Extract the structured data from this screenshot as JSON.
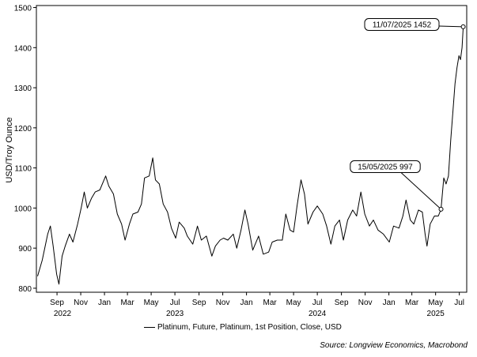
{
  "chart_data": {
    "type": "line",
    "title": "",
    "ylabel": "USD/Troy Ounce",
    "xlabel": "",
    "ylim": [
      790,
      1505
    ],
    "yticks": [
      "800",
      "900",
      "1000",
      "1100",
      "1200",
      "1300",
      "1400",
      "1500"
    ],
    "xticks": [
      "Sep",
      "Nov",
      "Jan",
      "Mar",
      "May",
      "Jul",
      "Sep",
      "Nov",
      "Jan",
      "Mar",
      "May",
      "Jul",
      "Sep",
      "Nov",
      "Jan",
      "Mar",
      "May",
      "Jul"
    ],
    "xyears": [
      "2022",
      "2023",
      "2024",
      "2025"
    ],
    "grid": false,
    "legend_position": "bottom",
    "series": [
      {
        "name": "Platinum, Future, Platinum, 1st Position, Close, USD",
        "color": "#000000",
        "points": [
          [
            "2022-07-13",
            830
          ],
          [
            "2022-07-25",
            870
          ],
          [
            "2022-08-08",
            935
          ],
          [
            "2022-08-15",
            955
          ],
          [
            "2022-08-22",
            905
          ],
          [
            "2022-08-31",
            835
          ],
          [
            "2022-09-06",
            810
          ],
          [
            "2022-09-14",
            880
          ],
          [
            "2022-09-22",
            905
          ],
          [
            "2022-10-03",
            935
          ],
          [
            "2022-10-12",
            915
          ],
          [
            "2022-10-24",
            960
          ],
          [
            "2022-11-02",
            1000
          ],
          [
            "2022-11-10",
            1040
          ],
          [
            "2022-11-18",
            1000
          ],
          [
            "2022-11-29",
            1025
          ],
          [
            "2022-12-08",
            1040
          ],
          [
            "2022-12-20",
            1045
          ],
          [
            "2023-01-04",
            1080
          ],
          [
            "2023-01-12",
            1055
          ],
          [
            "2023-01-24",
            1035
          ],
          [
            "2023-02-03",
            985
          ],
          [
            "2023-02-14",
            960
          ],
          [
            "2023-02-23",
            920
          ],
          [
            "2023-03-06",
            960
          ],
          [
            "2023-03-15",
            985
          ],
          [
            "2023-03-28",
            990
          ],
          [
            "2023-04-06",
            1010
          ],
          [
            "2023-04-14",
            1075
          ],
          [
            "2023-04-26",
            1080
          ],
          [
            "2023-05-05",
            1125
          ],
          [
            "2023-05-12",
            1070
          ],
          [
            "2023-05-22",
            1060
          ],
          [
            "2023-06-01",
            1010
          ],
          [
            "2023-06-12",
            990
          ],
          [
            "2023-06-22",
            950
          ],
          [
            "2023-07-03",
            925
          ],
          [
            "2023-07-12",
            965
          ],
          [
            "2023-07-25",
            950
          ],
          [
            "2023-08-02",
            930
          ],
          [
            "2023-08-16",
            910
          ],
          [
            "2023-08-28",
            955
          ],
          [
            "2023-09-07",
            920
          ],
          [
            "2023-09-20",
            930
          ],
          [
            "2023-10-04",
            880
          ],
          [
            "2023-10-13",
            905
          ],
          [
            "2023-10-25",
            920
          ],
          [
            "2023-11-03",
            925
          ],
          [
            "2023-11-14",
            920
          ],
          [
            "2023-11-28",
            935
          ],
          [
            "2023-12-07",
            900
          ],
          [
            "2023-12-18",
            945
          ],
          [
            "2023-12-28",
            995
          ],
          [
            "2024-01-05",
            960
          ],
          [
            "2024-01-17",
            895
          ],
          [
            "2024-02-01",
            930
          ],
          [
            "2024-02-13",
            885
          ],
          [
            "2024-02-27",
            890
          ],
          [
            "2024-03-07",
            915
          ],
          [
            "2024-03-20",
            920
          ],
          [
            "2024-04-02",
            920
          ],
          [
            "2024-04-11",
            985
          ],
          [
            "2024-04-22",
            945
          ],
          [
            "2024-05-01",
            940
          ],
          [
            "2024-05-10",
            1005
          ],
          [
            "2024-05-20",
            1070
          ],
          [
            "2024-05-29",
            1035
          ],
          [
            "2024-06-07",
            960
          ],
          [
            "2024-06-20",
            990
          ],
          [
            "2024-07-01",
            1005
          ],
          [
            "2024-07-15",
            985
          ],
          [
            "2024-07-25",
            955
          ],
          [
            "2024-08-05",
            910
          ],
          [
            "2024-08-15",
            955
          ],
          [
            "2024-08-27",
            970
          ],
          [
            "2024-09-06",
            920
          ],
          [
            "2024-09-17",
            970
          ],
          [
            "2024-09-30",
            995
          ],
          [
            "2024-10-10",
            980
          ],
          [
            "2024-10-21",
            1040
          ],
          [
            "2024-10-31",
            985
          ],
          [
            "2024-11-12",
            955
          ],
          [
            "2024-11-22",
            970
          ],
          [
            "2024-12-04",
            945
          ],
          [
            "2024-12-18",
            935
          ],
          [
            "2025-01-02",
            915
          ],
          [
            "2025-01-13",
            955
          ],
          [
            "2025-01-27",
            950
          ],
          [
            "2025-02-06",
            980
          ],
          [
            "2025-02-14",
            1020
          ],
          [
            "2025-02-25",
            970
          ],
          [
            "2025-03-06",
            960
          ],
          [
            "2025-03-18",
            995
          ],
          [
            "2025-03-28",
            990
          ],
          [
            "2025-04-04",
            935
          ],
          [
            "2025-04-09",
            905
          ],
          [
            "2025-04-17",
            960
          ],
          [
            "2025-04-28",
            980
          ],
          [
            "2025-05-08",
            980
          ],
          [
            "2025-05-15",
            997
          ],
          [
            "2025-05-22",
            1075
          ],
          [
            "2025-05-28",
            1060
          ],
          [
            "2025-06-03",
            1080
          ],
          [
            "2025-06-09",
            1170
          ],
          [
            "2025-06-16",
            1260
          ],
          [
            "2025-06-20",
            1310
          ],
          [
            "2025-06-25",
            1350
          ],
          [
            "2025-06-30",
            1380
          ],
          [
            "2025-07-04",
            1370
          ],
          [
            "2025-07-08",
            1400
          ],
          [
            "2025-07-11",
            1452
          ]
        ]
      }
    ],
    "annotations": [
      {
        "label": "15/05/2025 997",
        "date": "2025-05-15",
        "value": 997
      },
      {
        "label": "11/07/2025 1452",
        "date": "2025-07-11",
        "value": 1452
      }
    ]
  },
  "legend": {
    "label": "Platinum, Future, Platinum, 1st Position, Close, USD"
  },
  "source": "Source: Longview Economics, Macrobond"
}
